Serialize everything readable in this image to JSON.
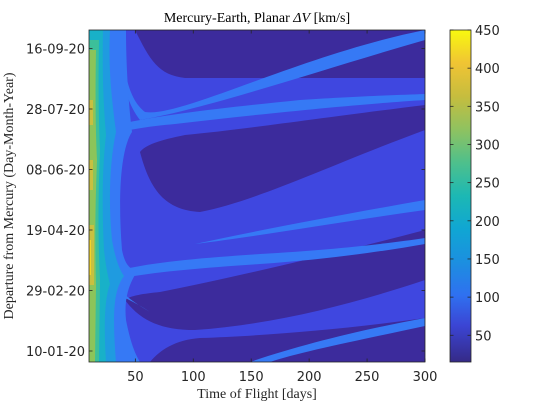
{
  "chart_data": {
    "type": "contour",
    "title_prefix": "Mercury-Earth, Planar ",
    "title_symbol": "ΔV",
    "title_unit": " [km/s]",
    "xlabel": "Time of Flight [days]",
    "ylabel": "Departure from Mercury (Day-Month-Year)",
    "xlim": [
      10,
      300
    ],
    "x_ticks": [
      50,
      100,
      150,
      200,
      250,
      300
    ],
    "y_ticks": [
      "10-01-20",
      "29-02-20",
      "19-04-20",
      "08-06-20",
      "28-07-20",
      "16-09-20"
    ],
    "colorbar": {
      "min": 15,
      "max": 450,
      "ticks": [
        50,
        100,
        150,
        200,
        250,
        300,
        350,
        400,
        450
      ],
      "colormap": "parula"
    },
    "contour_levels": [
      {
        "level": 15,
        "color": "#3c2b9c"
      },
      {
        "level": 60,
        "color": "#3f47e0"
      },
      {
        "level": 100,
        "color": "#3679f5"
      },
      {
        "level": 140,
        "color": "#1f9be0"
      },
      {
        "level": 180,
        "color": "#18b1c8"
      },
      {
        "level": 230,
        "color": "#3cbf9a"
      },
      {
        "level": 290,
        "color": "#8cc45a"
      },
      {
        "level": 340,
        "color": "#c8c040"
      },
      {
        "level": 400,
        "color": "#f5d52a"
      }
    ]
  }
}
